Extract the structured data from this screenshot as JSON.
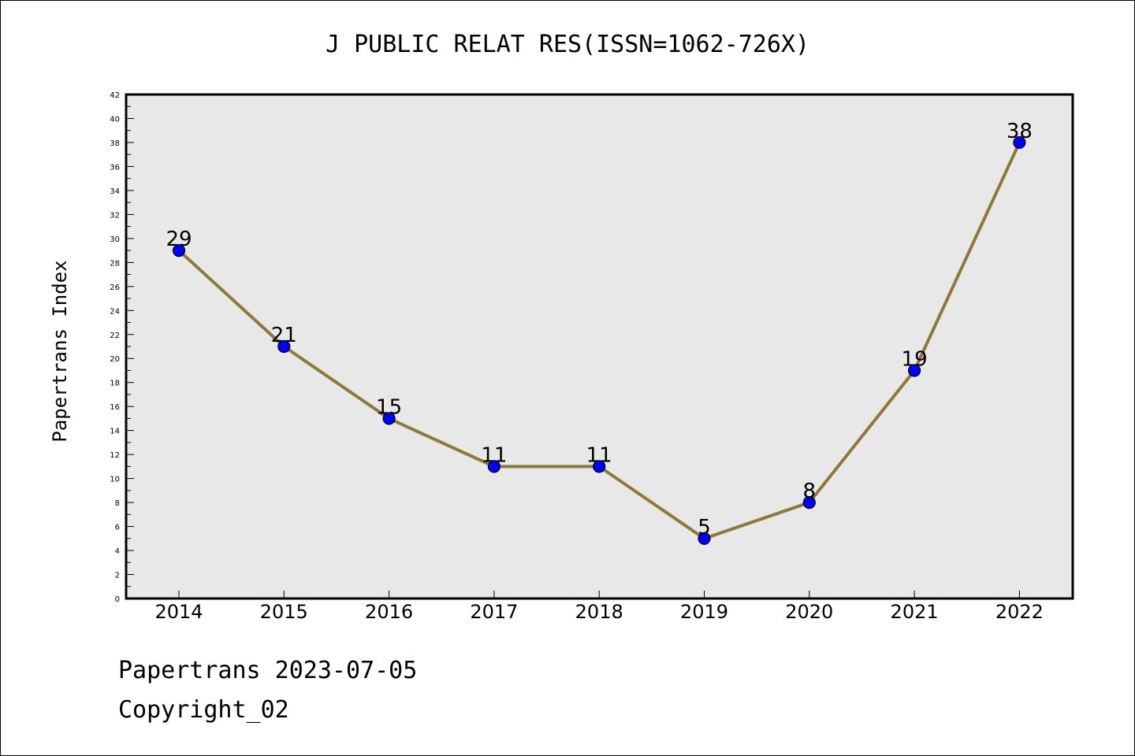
{
  "chart_data": {
    "type": "line",
    "title": "J PUBLIC RELAT RES(ISSN=1062-726X)",
    "xlabel": "",
    "ylabel": "Papertrans Index",
    "categories": [
      "2014",
      "2015",
      "2016",
      "2017",
      "2018",
      "2019",
      "2020",
      "2021",
      "2022"
    ],
    "series": [
      {
        "values": [
          29,
          21,
          15,
          11,
          11,
          5,
          8,
          19,
          38
        ]
      }
    ],
    "ylim": [
      0,
      42
    ],
    "ytick_step": 2,
    "grid": false,
    "data_labels": true,
    "colors": {
      "line": "#8b7a3a",
      "marker": "#0000ff",
      "plot_background": "#e8e8e8"
    }
  },
  "footer": {
    "line1": "Papertrans 2023-07-05",
    "line2": "Copyright_02"
  }
}
